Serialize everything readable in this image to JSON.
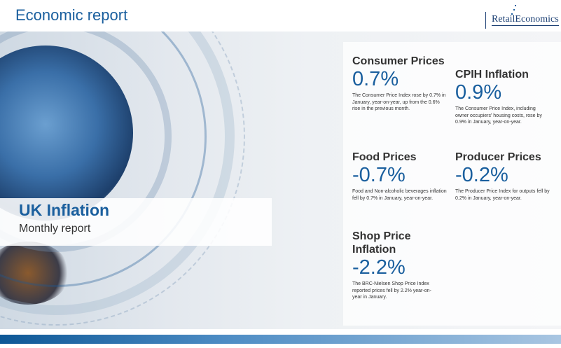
{
  "header": {
    "title": "Economic report",
    "logo_text": "RetailEconomics"
  },
  "cover": {
    "title": "UK Inflation",
    "subtitle": "Monthly report"
  },
  "stats": [
    {
      "title": "Consumer Prices",
      "value": "0.7%",
      "description": "The Consumer Price Index rose by 0.7% in January, year-on-year, up from the 0.6% rise in the previous month."
    },
    {
      "title": "CPIH Inflation",
      "value": "0.9%",
      "description": "The Consumer Price Index, including owner occupiers' housing costs, rose by 0.9% in January, year-on-year."
    },
    {
      "title": "Food Prices",
      "value": "-0.7%",
      "description": "Food and Non-alcoholic beverages inflation fell by 0.7% in January, year-on-year."
    },
    {
      "title": "Producer Prices",
      "value": "-0.2%",
      "description": "The Producer Price Index for outputs fell by 0.2% in January, year-on-year."
    },
    {
      "title": "Shop Price Inflation",
      "value": "-2.2%",
      "description": "The BRC-Nielsen Shop Price Index reported prices fell by 2.2% year-on-year in January."
    }
  ],
  "colors": {
    "accent": "#1a5f9e",
    "text": "#333333"
  }
}
